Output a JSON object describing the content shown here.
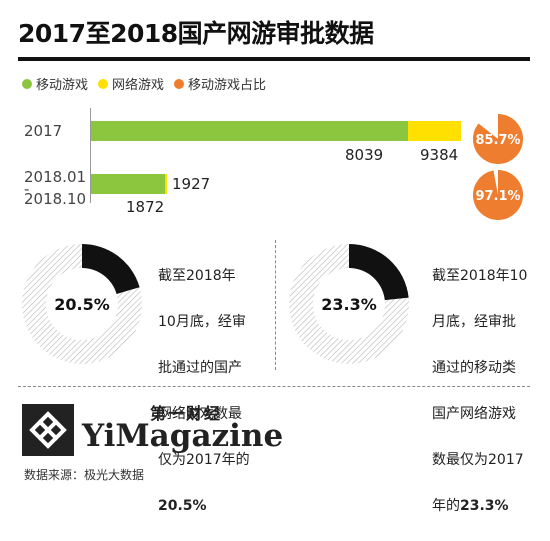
{
  "title": "2017至2018国产网游审批数据",
  "legend": [
    {
      "label": "移动游戏",
      "color": "#8cc63f"
    },
    {
      "label": "网络游戏",
      "color": "#ffe000"
    },
    {
      "label": "移动游戏占比",
      "color": "#ee7d2f"
    }
  ],
  "chart_data": [
    {
      "type": "bar",
      "categories": [
        "2017",
        "2018.01-2018.10"
      ],
      "series": [
        {
          "name": "移动游戏",
          "values": [
            8039,
            1872
          ]
        },
        {
          "name": "网络游戏",
          "values": [
            9384,
            1927
          ]
        }
      ],
      "shares": [
        {
          "category": "2017",
          "percent": 85.7,
          "label": "85.7%"
        },
        {
          "category": "2018.01-2018.10",
          "percent": 97.1,
          "label": "97.1%"
        }
      ]
    },
    {
      "type": "pie",
      "label": "20.5%",
      "value": 20.5,
      "description_lines": [
        "截至2018年",
        "10月底，经审",
        "批通过的国产",
        "网络游戏数最",
        "仅为2017年的"
      ],
      "description_bold": "20.5%"
    },
    {
      "type": "pie",
      "label": "23.3%",
      "value": 23.3,
      "description_lines": [
        "截至2018年10",
        "月底，经审批",
        "通过的移动类",
        "国产网络游戏",
        "数最仅为2017",
        "年的"
      ],
      "description_bold": "23.3%"
    }
  ],
  "rows": {
    "r1_label": "2017",
    "r2_label_a": "2018.01",
    "r2_label_dash": "-",
    "r2_label_b": "2018.10"
  },
  "brand": {
    "cn": "第一财经",
    "en": "YiMagazine"
  },
  "source": "数据来源：极光大数据"
}
